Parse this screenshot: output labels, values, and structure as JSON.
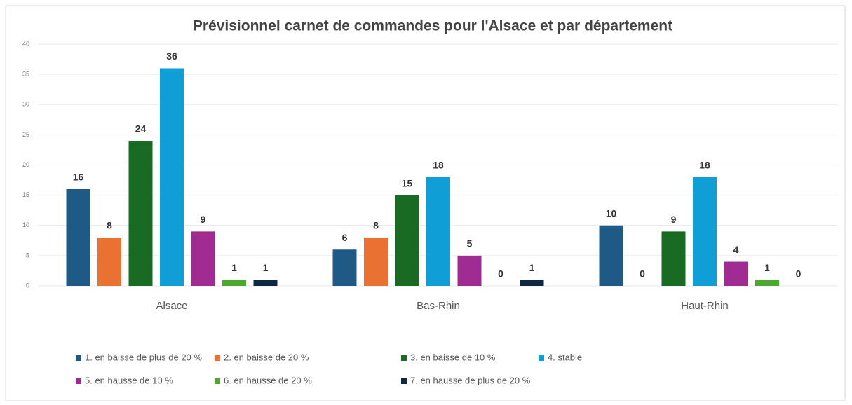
{
  "chart_data": {
    "type": "bar",
    "title": "Prévisionnel carnet de commandes pour l'Alsace et par département",
    "categories": [
      "Alsace",
      "Bas-Rhin",
      "Haut-Rhin"
    ],
    "series": [
      {
        "name": "1. en baisse de plus de 20 %",
        "color": "#1f5a86",
        "values": [
          16,
          6,
          10
        ]
      },
      {
        "name": "2. en baisse de 20 %",
        "color": "#e97132",
        "values": [
          8,
          8,
          0
        ]
      },
      {
        "name": "3. en baisse de 10 %",
        "color": "#196b24",
        "values": [
          24,
          15,
          9
        ]
      },
      {
        "name": "4. stable",
        "color": "#0f9ed5",
        "values": [
          36,
          18,
          18
        ]
      },
      {
        "name": "5. en hausse de 10 %",
        "color": "#a02b93",
        "values": [
          9,
          5,
          4
        ]
      },
      {
        "name": "6. en hausse de 20 %",
        "color": "#4ea72e",
        "values": [
          1,
          0,
          1
        ]
      },
      {
        "name": "7. en hausse de plus de 20 %",
        "color": "#0e2841",
        "values": [
          1,
          1,
          0
        ]
      }
    ],
    "ylim": [
      0,
      40
    ],
    "yticks": [
      0,
      5,
      10,
      15,
      20,
      25,
      30,
      35,
      40
    ],
    "grid": true,
    "legend": "bottom"
  }
}
